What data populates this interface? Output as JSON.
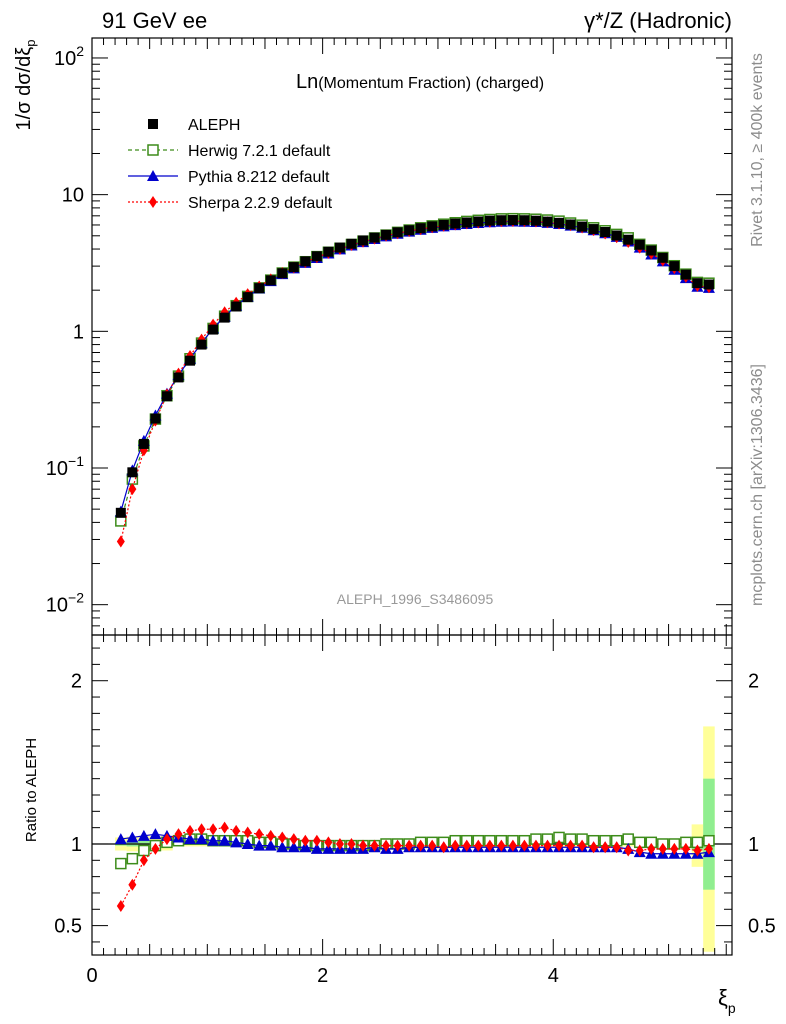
{
  "header": {
    "left": "91 GeV ee",
    "right": "γ*/Z (Hadronic)"
  },
  "side_labels": {
    "rivet": "Rivet 3.1.10, ≥ 400k events",
    "mcplots": "mcplots.cern.ch [arXiv:1306.3436]"
  },
  "chart_data": [
    {
      "type": "scatter",
      "title_prefix": "Ln",
      "title": "(Momentum Fraction) (charged)",
      "watermark": "ALEPH_1996_S3486095",
      "ylabel": "1/σ dσ/dξ",
      "ylabel_sub": "p",
      "yscale": "log",
      "ylim": [
        0.006,
        140
      ],
      "xlim": [
        0,
        5.55
      ],
      "x": [
        0.25,
        0.35,
        0.45,
        0.55,
        0.65,
        0.75,
        0.85,
        0.95,
        1.05,
        1.15,
        1.25,
        1.35,
        1.45,
        1.55,
        1.65,
        1.75,
        1.85,
        1.95,
        2.05,
        2.15,
        2.25,
        2.35,
        2.45,
        2.55,
        2.65,
        2.75,
        2.85,
        2.95,
        3.05,
        3.15,
        3.25,
        3.35,
        3.45,
        3.55,
        3.65,
        3.75,
        3.85,
        3.95,
        4.05,
        4.15,
        4.25,
        4.35,
        4.45,
        4.55,
        4.65,
        4.75,
        4.85,
        4.95,
        5.05,
        5.15,
        5.25,
        5.35
      ],
      "y_ticks": [
        {
          "value": 100,
          "base": "10",
          "exp": "2"
        },
        {
          "value": 10,
          "base": "10",
          "exp": ""
        },
        {
          "value": 1,
          "base": "1",
          "exp": ""
        },
        {
          "value": 0.1,
          "base": "10",
          "exp": "−1"
        },
        {
          "value": 0.01,
          "base": "10",
          "exp": "−2"
        }
      ],
      "series": [
        {
          "name": "ALEPH",
          "style": "data",
          "color": "#000000",
          "values": [
            0.047,
            0.093,
            0.15,
            0.23,
            0.335,
            0.46,
            0.61,
            0.8,
            1.03,
            1.26,
            1.52,
            1.78,
            2.07,
            2.36,
            2.66,
            2.95,
            3.25,
            3.54,
            3.82,
            4.1,
            4.37,
            4.62,
            4.85,
            5.08,
            5.3,
            5.49,
            5.68,
            5.86,
            6.01,
            6.14,
            6.25,
            6.36,
            6.45,
            6.5,
            6.52,
            6.5,
            6.45,
            6.35,
            6.22,
            6.05,
            5.84,
            5.6,
            5.33,
            5.02,
            4.68,
            4.3,
            3.9,
            3.45,
            3.0,
            2.6,
            2.25,
            2.2
          ]
        },
        {
          "name": "Herwig 7.2.1 default",
          "style": "herwig",
          "color": "#3d8c1a",
          "values": [
            0.041,
            0.083,
            0.145,
            0.228,
            0.338,
            0.47,
            0.63,
            0.82,
            1.05,
            1.29,
            1.54,
            1.8,
            2.08,
            2.37,
            2.67,
            2.95,
            3.23,
            3.52,
            3.79,
            4.05,
            4.32,
            4.57,
            4.82,
            5.06,
            5.3,
            5.51,
            5.72,
            5.91,
            6.08,
            6.23,
            6.37,
            6.49,
            6.58,
            6.65,
            6.67,
            6.65,
            6.61,
            6.52,
            6.4,
            6.2,
            5.98,
            5.72,
            5.44,
            5.12,
            4.83,
            4.33,
            3.93,
            3.47,
            3.02,
            2.62,
            2.28,
            2.25
          ]
        },
        {
          "name": "Pythia 8.212 default",
          "style": "pythia",
          "color": "#0000cc",
          "values": [
            0.048,
            0.096,
            0.158,
            0.242,
            0.35,
            0.478,
            0.63,
            0.82,
            1.05,
            1.28,
            1.54,
            1.79,
            2.06,
            2.33,
            2.62,
            2.89,
            3.17,
            3.44,
            3.71,
            3.98,
            4.25,
            4.49,
            4.74,
            4.95,
            5.17,
            5.36,
            5.54,
            5.71,
            5.86,
            5.98,
            6.1,
            6.2,
            6.28,
            6.34,
            6.36,
            6.34,
            6.31,
            6.22,
            6.1,
            5.94,
            5.73,
            5.49,
            5.22,
            4.91,
            4.54,
            4.1,
            3.65,
            3.25,
            2.82,
            2.45,
            2.12,
            2.08
          ]
        },
        {
          "name": "Sherpa 2.2.9 default",
          "style": "sherpa",
          "color": "#ff0000",
          "values": [
            0.029,
            0.07,
            0.135,
            0.222,
            0.345,
            0.49,
            0.66,
            0.87,
            1.12,
            1.38,
            1.62,
            1.87,
            2.13,
            2.4,
            2.67,
            2.93,
            3.21,
            3.48,
            3.75,
            4.01,
            4.28,
            4.53,
            4.77,
            5.01,
            5.22,
            5.42,
            5.6,
            5.77,
            5.92,
            6.05,
            6.16,
            6.26,
            6.34,
            6.4,
            6.42,
            6.4,
            6.36,
            6.28,
            6.15,
            5.98,
            5.75,
            5.5,
            5.2,
            4.88,
            4.5,
            4.1,
            3.7,
            3.3,
            2.9,
            2.5,
            2.15,
            2.1
          ]
        }
      ]
    },
    {
      "type": "scatter",
      "title": "",
      "ylabel": "Ratio to ALEPH",
      "xlabel": "ξ",
      "xlabel_sub": "p",
      "ylim": [
        0.32,
        2.28
      ],
      "xlim": [
        0,
        5.55
      ],
      "x_ticks": [
        0,
        2,
        4
      ],
      "y_ticks": [
        0.5,
        1,
        2
      ],
      "x": [
        0.25,
        0.35,
        0.45,
        0.55,
        0.65,
        0.75,
        0.85,
        0.95,
        1.05,
        1.15,
        1.25,
        1.35,
        1.45,
        1.55,
        1.65,
        1.75,
        1.85,
        1.95,
        2.05,
        2.15,
        2.25,
        2.35,
        2.45,
        2.55,
        2.65,
        2.75,
        2.85,
        2.95,
        3.05,
        3.15,
        3.25,
        3.35,
        3.45,
        3.55,
        3.65,
        3.75,
        3.85,
        3.95,
        4.05,
        4.15,
        4.25,
        4.35,
        4.45,
        4.55,
        4.65,
        4.75,
        4.85,
        4.95,
        5.05,
        5.15,
        5.25,
        5.35
      ],
      "uncertainty_bands": {
        "inner_color": "#90ee90",
        "outer_color": "#ffff99",
        "bin_edges": [
          0.2,
          0.3,
          0.4,
          0.5,
          0.6,
          0.7,
          5.2,
          5.3,
          5.4
        ],
        "inner": [
          [
            0.99,
            1.01
          ],
          [
            0.985,
            1.015
          ],
          [
            0.98,
            1.02
          ],
          [
            0.985,
            1.015
          ],
          [
            0.99,
            1.01
          ],
          [
            0.995,
            1.005
          ],
          [
            0.96,
            1.04
          ],
          [
            0.72,
            1.4
          ]
        ],
        "outer": [
          [
            0.96,
            1.04
          ],
          [
            0.955,
            1.045
          ],
          [
            0.95,
            1.05
          ],
          [
            0.955,
            1.045
          ],
          [
            0.96,
            1.04
          ],
          [
            0.985,
            1.015
          ],
          [
            0.86,
            1.12
          ],
          [
            0.34,
            1.72
          ]
        ]
      },
      "series": [
        {
          "name": "Herwig 7.2.1 default",
          "style": "herwig",
          "color": "#3d8c1a",
          "values": [
            0.88,
            0.91,
            0.96,
            0.99,
            1.01,
            1.02,
            1.03,
            1.03,
            1.02,
            1.02,
            1.02,
            1.02,
            1.01,
            1.01,
            1.0,
            1.0,
            0.99,
            0.99,
            0.99,
            0.99,
            0.99,
            0.99,
            0.99,
            1.0,
            1.0,
            1.0,
            1.01,
            1.01,
            1.01,
            1.02,
            1.02,
            1.02,
            1.02,
            1.02,
            1.02,
            1.02,
            1.03,
            1.03,
            1.04,
            1.03,
            1.03,
            1.02,
            1.02,
            1.02,
            1.03,
            1.01,
            1.01,
            1.0,
            1.0,
            1.01,
            1.01,
            1.02
          ]
        },
        {
          "name": "Pythia 8.212 default",
          "style": "pythia",
          "color": "#0000cc",
          "values": [
            1.03,
            1.04,
            1.05,
            1.06,
            1.05,
            1.04,
            1.03,
            1.03,
            1.02,
            1.02,
            1.01,
            1.0,
            0.99,
            0.99,
            0.98,
            0.98,
            0.98,
            0.97,
            0.97,
            0.97,
            0.97,
            0.97,
            0.98,
            0.97,
            0.97,
            0.98,
            0.98,
            0.98,
            0.98,
            0.98,
            0.98,
            0.98,
            0.98,
            0.98,
            0.98,
            0.98,
            0.98,
            0.98,
            0.98,
            0.98,
            0.98,
            0.98,
            0.98,
            0.98,
            0.97,
            0.95,
            0.94,
            0.94,
            0.94,
            0.94,
            0.94,
            0.95
          ]
        },
        {
          "name": "Sherpa 2.2.9 default",
          "style": "sherpa",
          "color": "#ff0000",
          "values": [
            0.62,
            0.75,
            0.9,
            0.97,
            1.03,
            1.06,
            1.08,
            1.09,
            1.09,
            1.1,
            1.08,
            1.07,
            1.06,
            1.05,
            1.04,
            1.03,
            1.02,
            1.02,
            1.01,
            1.0,
            1.0,
            0.99,
            0.99,
            0.99,
            0.99,
            0.99,
            0.99,
            0.99,
            0.98,
            0.99,
            0.99,
            0.99,
            0.99,
            0.99,
            0.99,
            0.99,
            0.99,
            0.99,
            0.99,
            0.99,
            0.99,
            0.98,
            0.98,
            0.98,
            0.96,
            0.96,
            0.97,
            0.97,
            0.97,
            0.97,
            0.96,
            0.97
          ]
        }
      ]
    }
  ]
}
